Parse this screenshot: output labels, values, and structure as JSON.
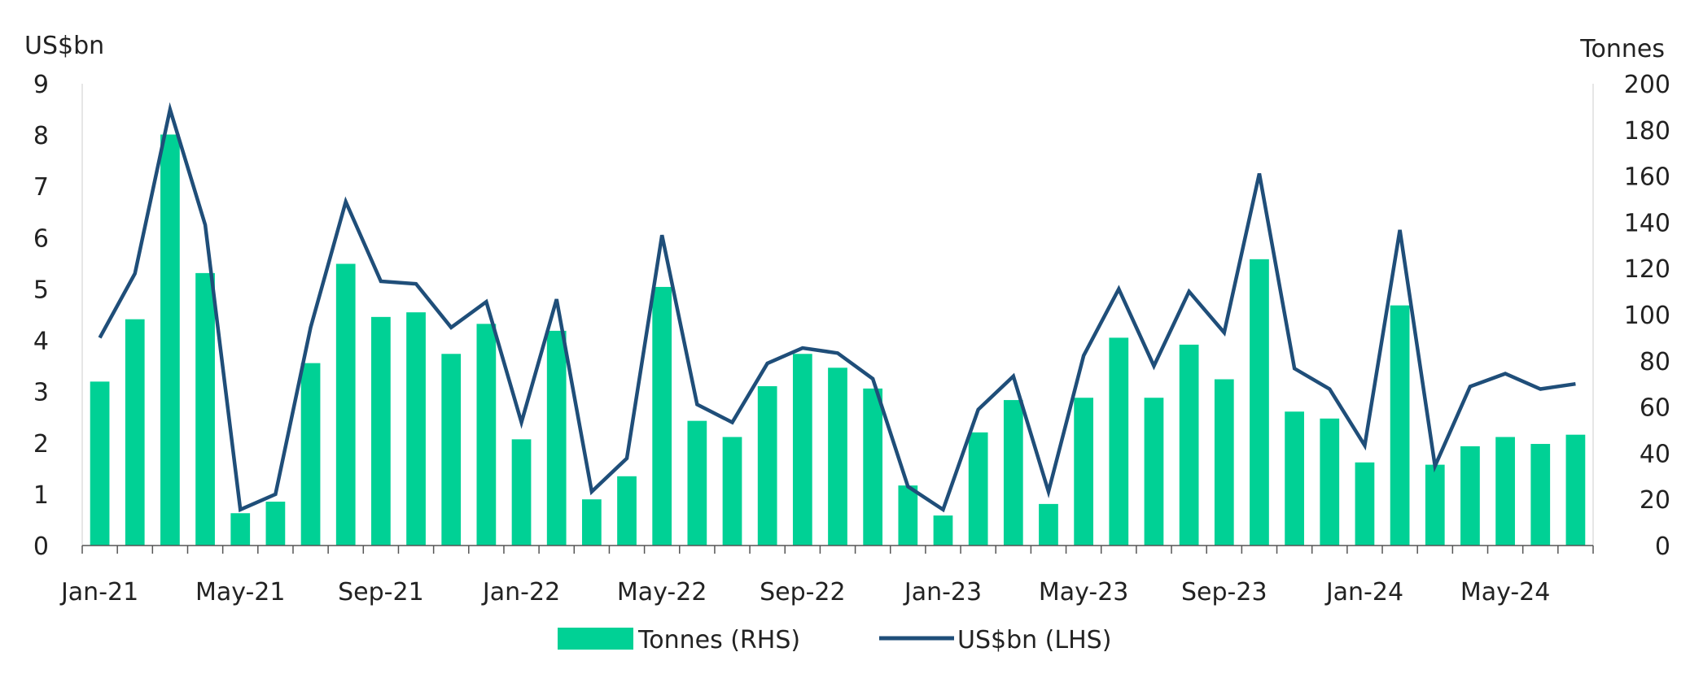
{
  "chart_data": {
    "type": "bar+line",
    "title": "",
    "left_axis": {
      "label": "US$bn",
      "ylim": [
        0,
        9
      ],
      "ticks": [
        0,
        1,
        2,
        3,
        4,
        5,
        6,
        7,
        8,
        9
      ]
    },
    "right_axis": {
      "label": "Tonnes",
      "ylim": [
        0,
        200
      ],
      "ticks": [
        0,
        20,
        40,
        60,
        80,
        100,
        120,
        140,
        160,
        180,
        200
      ]
    },
    "x_tick_labels": [
      "Jan-21",
      "May-21",
      "Sep-21",
      "Jan-22",
      "May-22",
      "Sep-22",
      "Jan-23",
      "May-23",
      "Sep-23",
      "Jan-24",
      "May-24"
    ],
    "x_tick_step": 4,
    "categories": [
      "Jan-21",
      "Feb-21",
      "Mar-21",
      "Apr-21",
      "May-21",
      "Jun-21",
      "Jul-21",
      "Aug-21",
      "Sep-21",
      "Oct-21",
      "Nov-21",
      "Dec-21",
      "Jan-22",
      "Feb-22",
      "Mar-22",
      "Apr-22",
      "May-22",
      "Jun-22",
      "Jul-22",
      "Aug-22",
      "Sep-22",
      "Oct-22",
      "Nov-22",
      "Dec-22",
      "Jan-23",
      "Feb-23",
      "Mar-23",
      "Apr-23",
      "May-23",
      "Jun-23",
      "Jul-23",
      "Aug-23",
      "Sep-23",
      "Oct-23",
      "Nov-23",
      "Dec-23",
      "Jan-24",
      "Feb-24",
      "Mar-24",
      "Apr-24",
      "May-24",
      "Jun-24",
      "Jul-24"
    ],
    "series": [
      {
        "name": "Tonnes (RHS)",
        "type": "bar",
        "axis": "right",
        "color": "#00d195",
        "values": [
          71,
          98,
          178,
          118,
          14,
          19,
          79,
          122,
          99,
          101,
          83,
          96,
          46,
          93,
          20,
          30,
          112,
          54,
          47,
          69,
          83,
          77,
          68,
          26,
          13,
          49,
          63,
          18,
          64,
          90,
          64,
          87,
          72,
          124,
          58,
          55,
          36,
          104,
          35,
          43,
          47,
          44,
          48
        ]
      },
      {
        "name": "US$bn (LHS)",
        "type": "line",
        "axis": "left",
        "color": "#1f4e79",
        "values": [
          4.05,
          5.3,
          8.5,
          6.25,
          0.7,
          1.0,
          4.25,
          6.7,
          5.15,
          5.1,
          4.25,
          4.75,
          2.4,
          4.8,
          1.05,
          1.7,
          6.05,
          2.75,
          2.4,
          3.55,
          3.85,
          3.75,
          3.25,
          1.15,
          0.7,
          2.65,
          3.3,
          1.05,
          3.7,
          5.0,
          3.5,
          4.95,
          4.15,
          7.25,
          3.45,
          3.05,
          1.95,
          6.15,
          1.55,
          3.1,
          3.35,
          3.05,
          3.15
        ]
      }
    ],
    "legend": {
      "position": "bottom",
      "items": [
        "Tonnes (RHS)",
        "US$bn (LHS)"
      ]
    },
    "grid": false
  }
}
